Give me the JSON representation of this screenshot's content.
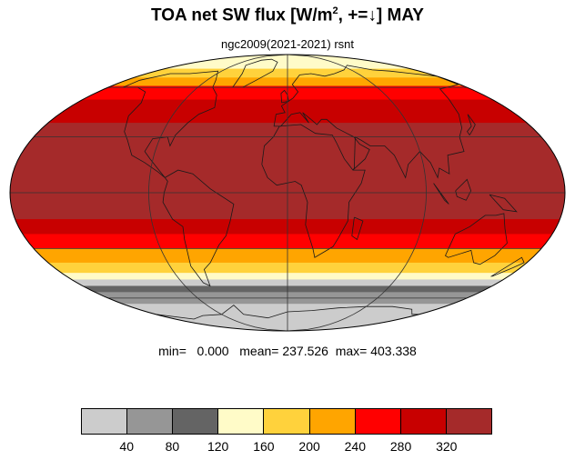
{
  "header": {
    "title_pre": "TOA net SW flux [W/m",
    "title_sup": "2",
    "title_post": ", +=↓]  MAY",
    "subtitle": "ngc2009(2021-2021)   rsnt"
  },
  "stats": {
    "text": "min=   0.000   mean= 237.526  max= 403.338"
  },
  "map": {
    "projection": "mollweide",
    "field_bands_lat": [
      {
        "from": 90,
        "to": 74,
        "color": "#fffbc8"
      },
      {
        "from": 74,
        "to": 67,
        "color": "#ffd23c"
      },
      {
        "from": 67,
        "to": 61,
        "color": "#ffa500"
      },
      {
        "from": 61,
        "to": 52,
        "color": "#ff0000"
      },
      {
        "from": 52,
        "to": 38,
        "color": "#c80000"
      },
      {
        "from": 38,
        "to": -14,
        "color": "#a52a2a"
      },
      {
        "from": -14,
        "to": -22,
        "color": "#c80000"
      },
      {
        "from": -22,
        "to": -30,
        "color": "#ff0000"
      },
      {
        "from": -30,
        "to": -38,
        "color": "#ffa500"
      },
      {
        "from": -38,
        "to": -44,
        "color": "#ffd23c"
      },
      {
        "from": -44,
        "to": -48,
        "color": "#fffbc8"
      },
      {
        "from": -48,
        "to": -52,
        "color": "#cccccc"
      },
      {
        "from": -52,
        "to": -56,
        "color": "#646464"
      },
      {
        "from": -56,
        "to": -64,
        "color": "#969696"
      },
      {
        "from": -64,
        "to": -90,
        "color": "#cccccc"
      }
    ],
    "grid_color": "#333333"
  },
  "colorbar": {
    "colors": [
      "#cccccc",
      "#969696",
      "#646464",
      "#fffbc8",
      "#ffd23c",
      "#ffa500",
      "#ff0000",
      "#c80000",
      "#a52a2a"
    ],
    "labels": [
      "40",
      "80",
      "120",
      "160",
      "200",
      "240",
      "280",
      "320"
    ]
  }
}
